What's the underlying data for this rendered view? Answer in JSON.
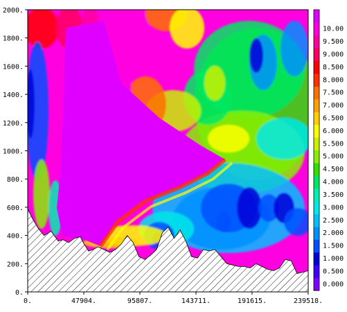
{
  "chart_data": {
    "type": "heatmap",
    "title": "",
    "xlabel": "",
    "ylabel": "",
    "xlim": [
      0,
      239518
    ],
    "ylim": [
      0,
      2000
    ],
    "x_ticks": [
      {
        "value": 0,
        "label": "0."
      },
      {
        "value": 47904,
        "label": "47904."
      },
      {
        "value": 95807,
        "label": "95807."
      },
      {
        "value": 143711,
        "label": "143711."
      },
      {
        "value": 191615,
        "label": "191615."
      },
      {
        "value": 239518,
        "label": "239518."
      }
    ],
    "y_ticks": [
      {
        "value": 0,
        "label": "0."
      },
      {
        "value": 200,
        "label": "200."
      },
      {
        "value": 400,
        "label": "400."
      },
      {
        "value": 600,
        "label": "600."
      },
      {
        "value": 800,
        "label": "800."
      },
      {
        "value": 1000,
        "label": "1000."
      },
      {
        "value": 1200,
        "label": "1200."
      },
      {
        "value": 1400,
        "label": "1400."
      },
      {
        "value": 1600,
        "label": "1600."
      },
      {
        "value": 1800,
        "label": "1800."
      },
      {
        "value": 2000,
        "label": "2000."
      }
    ],
    "colorbar": {
      "placement": "right",
      "levels": [
        {
          "label": "0.000",
          "color": "#8000ff"
        },
        {
          "label": "0.500",
          "color": "#3c00ff"
        },
        {
          "label": "1.000",
          "color": "#0000d8"
        },
        {
          "label": "1.500",
          "color": "#0050ff"
        },
        {
          "label": "2.000",
          "color": "#0090ff"
        },
        {
          "label": "2.500",
          "color": "#00c0ff"
        },
        {
          "label": "3.000",
          "color": "#00e8e8"
        },
        {
          "label": "3.500",
          "color": "#00f0b0"
        },
        {
          "label": "4.000",
          "color": "#00e860"
        },
        {
          "label": "4.500",
          "color": "#30e000"
        },
        {
          "label": "5.000",
          "color": "#88ee00"
        },
        {
          "label": "5.500",
          "color": "#c8f000"
        },
        {
          "label": "6.000",
          "color": "#ffff00"
        },
        {
          "label": "6.500",
          "color": "#ffd000"
        },
        {
          "label": "7.000",
          "color": "#ffa000"
        },
        {
          "label": "7.500",
          "color": "#ff7000"
        },
        {
          "label": "8.000",
          "color": "#ff3000"
        },
        {
          "label": "8.500",
          "color": "#ff0000"
        },
        {
          "label": "9.000",
          "color": "#ff0060"
        },
        {
          "label": "9.500",
          "color": "#ff00a0"
        },
        {
          "label": "10.00",
          "color": "#ff00e0"
        },
        {
          "label": "",
          "color": "#e000ff"
        }
      ]
    },
    "terrain": {
      "fill": "hatched",
      "profile_x": [
        0,
        4000,
        9000,
        14000,
        20000,
        26000,
        30000,
        35000,
        40000,
        45000,
        48000,
        52000,
        56000,
        60000,
        65000,
        70000,
        75000,
        80000,
        85000,
        90000,
        95000,
        100000,
        105000,
        110000,
        115000,
        120000,
        125000,
        130000,
        135000,
        140000,
        145000,
        150000,
        155000,
        160000,
        165000,
        170000,
        175000,
        180000,
        185000,
        190000,
        195000,
        200000,
        205000,
        210000,
        215000,
        220000,
        225000,
        230000,
        235000,
        239518
      ],
      "profile_y": [
        590,
        520,
        450,
        400,
        430,
        360,
        370,
        350,
        380,
        390,
        340,
        290,
        300,
        320,
        300,
        280,
        300,
        340,
        400,
        350,
        250,
        230,
        260,
        300,
        420,
        460,
        380,
        440,
        360,
        250,
        240,
        300,
        290,
        300,
        250,
        200,
        190,
        180,
        180,
        170,
        200,
        180,
        160,
        150,
        170,
        230,
        220,
        130,
        140,
        150
      ]
    },
    "field_features": [
      {
        "name": "low-level jet core",
        "x": 105000,
        "y": 280,
        "value": 0.5
      },
      {
        "name": "western maximum band",
        "x": 3000,
        "y": 1300,
        "value": 2.0
      },
      {
        "name": "upper east minimum",
        "x": 208000,
        "y": 1650,
        "value": 2.0
      },
      {
        "name": "central magenta plume",
        "x": 80000,
        "y": 1100,
        "value": 10.5
      },
      {
        "name": "east low-level minimum",
        "x": 168000,
        "y": 520,
        "value": 2.0
      },
      {
        "name": "east low-level minimum 2",
        "x": 194000,
        "y": 580,
        "value": 2.0
      },
      {
        "name": "east green plateau",
        "x": 190000,
        "y": 1200,
        "value": 4.5
      },
      {
        "name": "upper west red",
        "x": 30000,
        "y": 1850,
        "value": 8.5
      }
    ]
  }
}
